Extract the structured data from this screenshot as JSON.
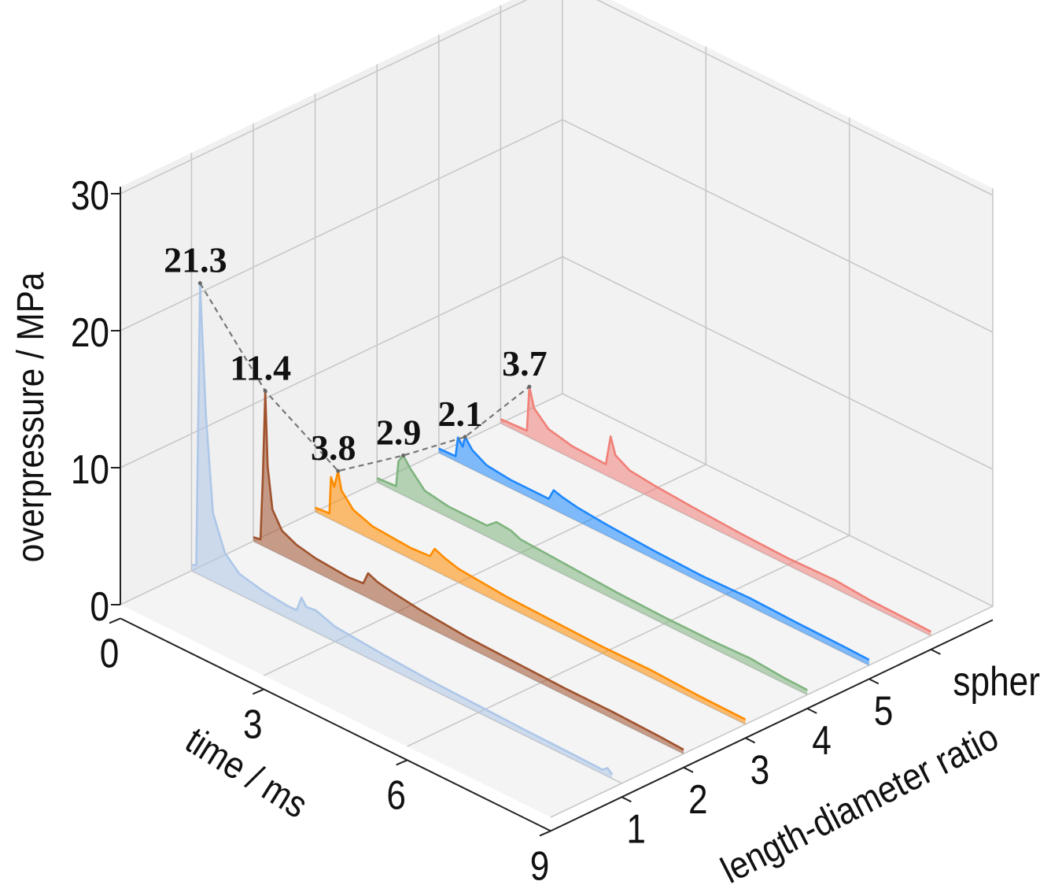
{
  "chart_data": {
    "type": "line",
    "projection": "3d",
    "xlabel": "time / ms",
    "ylabel": "length-diameter ratio",
    "zlabel": "overpressure / MPa",
    "xlim": [
      0,
      9
    ],
    "zlim": [
      0,
      30
    ],
    "x_ticks": [
      "0",
      "3",
      "6",
      "9"
    ],
    "z_ticks": [
      "0",
      "10",
      "20",
      "30"
    ],
    "y_ticks": [
      "1",
      "2",
      "3",
      "4",
      "5",
      "sphere"
    ],
    "grid": true,
    "peak_connector": "dashed",
    "series": [
      {
        "name": "1",
        "color": "#aec7e8",
        "peak": 21.3,
        "peak_label": "21.3",
        "points": [
          [
            0,
            0.4
          ],
          [
            0.1,
            0.6
          ],
          [
            0.18,
            21.3
          ],
          [
            0.3,
            12
          ],
          [
            0.45,
            5
          ],
          [
            0.7,
            2.5
          ],
          [
            1,
            1.5
          ],
          [
            1.5,
            1.1
          ],
          [
            2,
            0.9
          ],
          [
            2.2,
            0.9
          ],
          [
            2.3,
            2.0
          ],
          [
            2.4,
            1.5
          ],
          [
            2.6,
            1.6
          ],
          [
            3,
            1.1
          ],
          [
            4,
            0.8
          ],
          [
            5,
            0.6
          ],
          [
            6,
            0.5
          ],
          [
            7,
            0.4
          ],
          [
            8,
            0.35
          ],
          [
            8.6,
            0.3
          ],
          [
            8.7,
            0.6
          ],
          [
            8.8,
            0.3
          ]
        ]
      },
      {
        "name": "2",
        "color": "#a0522d",
        "peak": 11.4,
        "peak_label": "11.4",
        "points": [
          [
            0,
            0.3
          ],
          [
            0.15,
            0.4
          ],
          [
            0.2,
            5
          ],
          [
            0.25,
            11.4
          ],
          [
            0.3,
            6
          ],
          [
            0.4,
            3
          ],
          [
            0.6,
            1.8
          ],
          [
            0.9,
            1.3
          ],
          [
            1.3,
            1
          ],
          [
            2,
            0.8
          ],
          [
            2.3,
            0.9
          ],
          [
            2.4,
            1.8
          ],
          [
            2.6,
            1.5
          ],
          [
            2.9,
            1.3
          ],
          [
            3.5,
            1
          ],
          [
            4.5,
            0.7
          ],
          [
            5.5,
            0.6
          ],
          [
            6.5,
            0.5
          ],
          [
            7.5,
            0.5
          ],
          [
            8.5,
            0.4
          ],
          [
            9,
            0.3
          ]
        ]
      },
      {
        "name": "3",
        "color": "#ff8c00",
        "peak": 3.8,
        "peak_label": "3.8",
        "points": [
          [
            0,
            0.3
          ],
          [
            0.3,
            0.4
          ],
          [
            0.33,
            3.1
          ],
          [
            0.4,
            2.5
          ],
          [
            0.48,
            3.8
          ],
          [
            0.55,
            2.5
          ],
          [
            0.8,
            1.5
          ],
          [
            1.2,
            1
          ],
          [
            2,
            0.8
          ],
          [
            2.4,
            0.9
          ],
          [
            2.5,
            1.6
          ],
          [
            2.7,
            1.3
          ],
          [
            3,
            1.0
          ],
          [
            4,
            0.7
          ],
          [
            5,
            0.6
          ],
          [
            6,
            0.5
          ],
          [
            7,
            0.55
          ],
          [
            8,
            0.4
          ],
          [
            9,
            0.35
          ]
        ]
      },
      {
        "name": "4",
        "color": "#7fb47f",
        "peak": 2.9,
        "peak_label": "2.9",
        "points": [
          [
            0,
            0.3
          ],
          [
            0.4,
            0.4
          ],
          [
            0.45,
            2.3
          ],
          [
            0.55,
            2.9
          ],
          [
            0.7,
            2.2
          ],
          [
            1,
            1.1
          ],
          [
            1.5,
            0.8
          ],
          [
            2.3,
            0.8
          ],
          [
            2.5,
            1.4
          ],
          [
            2.8,
            1.3
          ],
          [
            3,
            1
          ],
          [
            4,
            0.8
          ],
          [
            5,
            0.6
          ],
          [
            6,
            0.5
          ],
          [
            7,
            0.5
          ],
          [
            7.8,
            0.6
          ],
          [
            8.5,
            0.4
          ],
          [
            9,
            0.35
          ]
        ]
      },
      {
        "name": "5",
        "color": "#1e88ff",
        "peak": 2.1,
        "peak_label": "2.1",
        "points": [
          [
            0,
            0.3
          ],
          [
            0.35,
            0.35
          ],
          [
            0.4,
            1.8
          ],
          [
            0.5,
            1.3
          ],
          [
            0.55,
            2.1
          ],
          [
            0.7,
            1.4
          ],
          [
            1,
            0.8
          ],
          [
            1.5,
            0.6
          ],
          [
            2.3,
            0.6
          ],
          [
            2.4,
            1.4
          ],
          [
            2.6,
            1.2
          ],
          [
            2.9,
            1
          ],
          [
            3.5,
            0.8
          ],
          [
            4.5,
            0.6
          ],
          [
            5.5,
            0.5
          ],
          [
            6.5,
            0.6
          ],
          [
            7.5,
            0.5
          ],
          [
            8.5,
            0.45
          ],
          [
            9,
            0.4
          ]
        ]
      },
      {
        "name": "sphere",
        "color": "#f08078",
        "peak": 3.7,
        "peak_label": "3.7",
        "points": [
          [
            0,
            0.3
          ],
          [
            0.55,
            0.4
          ],
          [
            0.6,
            3.7
          ],
          [
            0.7,
            2.3
          ],
          [
            1,
            1.3
          ],
          [
            1.5,
            0.9
          ],
          [
            2.2,
            0.8
          ],
          [
            2.3,
            3.0
          ],
          [
            2.4,
            1.8
          ],
          [
            2.7,
            1.2
          ],
          [
            3.2,
            1
          ],
          [
            4,
            0.8
          ],
          [
            5,
            0.6
          ],
          [
            6,
            0.5
          ],
          [
            7,
            0.6
          ],
          [
            7.7,
            0.4
          ],
          [
            8.5,
            0.35
          ],
          [
            9,
            0.3
          ]
        ]
      }
    ]
  }
}
